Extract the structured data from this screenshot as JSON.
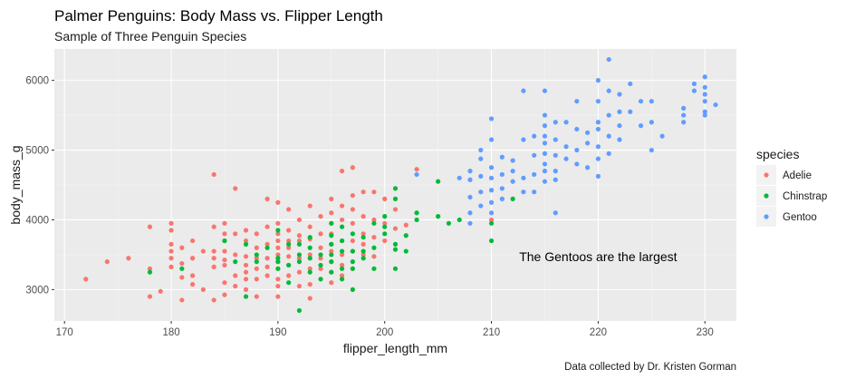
{
  "chart_data": {
    "type": "scatter",
    "title": "Palmer Penguins: Body Mass vs. Flipper Length",
    "subtitle": "Sample of Three Penguin Species",
    "xlabel": "flipper_length_mm",
    "ylabel": "body_mass_g",
    "caption": "Data collected by Dr. Kristen Gorman",
    "annotation": {
      "text": "The Gentoos are the largest",
      "x": 220,
      "y": 3475
    },
    "xlim": [
      169.05,
      232.95
    ],
    "ylim": [
      2550,
      6450
    ],
    "x_ticks": [
      170,
      180,
      190,
      200,
      210,
      220,
      230
    ],
    "y_ticks": [
      3000,
      4000,
      5000,
      6000
    ],
    "grid": true,
    "legend": {
      "title": "species",
      "position": "right"
    },
    "series": [
      {
        "name": "Adelie",
        "color": "#F8766D",
        "points": [
          [
            172,
            3150
          ],
          [
            174,
            3400
          ],
          [
            176,
            3450
          ],
          [
            178,
            3900
          ],
          [
            178,
            2900
          ],
          [
            178,
            3300
          ],
          [
            179,
            2975
          ],
          [
            180,
            3950
          ],
          [
            180,
            3850
          ],
          [
            180,
            3650
          ],
          [
            180,
            3550
          ],
          [
            180,
            3450
          ],
          [
            180,
            3325
          ],
          [
            181,
            3600
          ],
          [
            181,
            3375
          ],
          [
            181,
            3175
          ],
          [
            181,
            2850
          ],
          [
            182,
            3700
          ],
          [
            182,
            3450
          ],
          [
            182,
            3200
          ],
          [
            182,
            3075
          ],
          [
            183,
            3550
          ],
          [
            183,
            3000
          ],
          [
            184,
            4650
          ],
          [
            184,
            3900
          ],
          [
            184,
            3550
          ],
          [
            184,
            3450
          ],
          [
            184,
            3325
          ],
          [
            184,
            2850
          ],
          [
            185,
            3950
          ],
          [
            185,
            3800
          ],
          [
            185,
            3700
          ],
          [
            185,
            3550
          ],
          [
            185,
            3425
          ],
          [
            185,
            3350
          ],
          [
            185,
            3100
          ],
          [
            185,
            2925
          ],
          [
            186,
            4450
          ],
          [
            186,
            3800
          ],
          [
            186,
            3500
          ],
          [
            186,
            3200
          ],
          [
            186,
            3050
          ],
          [
            187,
            3850
          ],
          [
            187,
            3700
          ],
          [
            187,
            3475
          ],
          [
            187,
            3350
          ],
          [
            187,
            3250
          ],
          [
            187,
            3150
          ],
          [
            187,
            3000
          ],
          [
            188,
            3800
          ],
          [
            188,
            3600
          ],
          [
            188,
            3450
          ],
          [
            188,
            3300
          ],
          [
            188,
            3150
          ],
          [
            188,
            2900
          ],
          [
            189,
            4300
          ],
          [
            189,
            3900
          ],
          [
            189,
            3650
          ],
          [
            189,
            3450
          ],
          [
            189,
            3325
          ],
          [
            189,
            3200
          ],
          [
            190,
            4250
          ],
          [
            190,
            3950
          ],
          [
            190,
            3800
          ],
          [
            190,
            3700
          ],
          [
            190,
            3600
          ],
          [
            190,
            3500
          ],
          [
            190,
            3400
          ],
          [
            190,
            3300
          ],
          [
            190,
            3150
          ],
          [
            190,
            3050
          ],
          [
            190,
            2900
          ],
          [
            191,
            4150
          ],
          [
            191,
            3850
          ],
          [
            191,
            3700
          ],
          [
            191,
            3600
          ],
          [
            191,
            3475
          ],
          [
            191,
            3350
          ],
          [
            191,
            3200
          ],
          [
            192,
            4000
          ],
          [
            192,
            3775
          ],
          [
            192,
            3700
          ],
          [
            192,
            3450
          ],
          [
            192,
            3250
          ],
          [
            192,
            3050
          ],
          [
            193,
            4200
          ],
          [
            193,
            3900
          ],
          [
            193,
            3725
          ],
          [
            193,
            3500
          ],
          [
            193,
            3300
          ],
          [
            193,
            3075
          ],
          [
            193,
            2875
          ],
          [
            194,
            4050
          ],
          [
            194,
            3800
          ],
          [
            194,
            3600
          ],
          [
            194,
            3450
          ],
          [
            194,
            3300
          ],
          [
            195,
            4300
          ],
          [
            195,
            4100
          ],
          [
            195,
            3950
          ],
          [
            195,
            3800
          ],
          [
            195,
            3650
          ],
          [
            195,
            3550
          ],
          [
            195,
            3400
          ],
          [
            195,
            3250
          ],
          [
            195,
            3100
          ],
          [
            196,
            4700
          ],
          [
            196,
            4200
          ],
          [
            196,
            4000
          ],
          [
            196,
            3700
          ],
          [
            196,
            3500
          ],
          [
            196,
            3350
          ],
          [
            196,
            3200
          ],
          [
            197,
            4750
          ],
          [
            197,
            4350
          ],
          [
            197,
            4150
          ],
          [
            197,
            3950
          ],
          [
            197,
            3700
          ],
          [
            197,
            3550
          ],
          [
            197,
            3300
          ],
          [
            198,
            4400
          ],
          [
            198,
            4050
          ],
          [
            198,
            3800
          ],
          [
            198,
            3650
          ],
          [
            198,
            3500
          ],
          [
            199,
            4400
          ],
          [
            199,
            4000
          ],
          [
            199,
            3750
          ],
          [
            199,
            3475
          ],
          [
            200,
            4300
          ],
          [
            200,
            3950
          ],
          [
            200,
            3700
          ],
          [
            201,
            4150
          ],
          [
            201,
            3875
          ],
          [
            202,
            3925
          ],
          [
            203,
            4725
          ],
          [
            210,
            4000
          ]
        ]
      },
      {
        "name": "Chinstrap",
        "color": "#00BA38",
        "points": [
          [
            178,
            3250
          ],
          [
            181,
            3300
          ],
          [
            185,
            3700
          ],
          [
            186,
            3400
          ],
          [
            187,
            3650
          ],
          [
            187,
            2900
          ],
          [
            188,
            3500
          ],
          [
            188,
            3400
          ],
          [
            189,
            3600
          ],
          [
            190,
            3850
          ],
          [
            190,
            3450
          ],
          [
            190,
            3400
          ],
          [
            190,
            3300
          ],
          [
            191,
            3650
          ],
          [
            191,
            3350
          ],
          [
            191,
            3100
          ],
          [
            192,
            3650
          ],
          [
            192,
            3500
          ],
          [
            192,
            3400
          ],
          [
            192,
            2700
          ],
          [
            193,
            3750
          ],
          [
            193,
            3600
          ],
          [
            193,
            3450
          ],
          [
            193,
            3250
          ],
          [
            194,
            3500
          ],
          [
            194,
            3350
          ],
          [
            194,
            3150
          ],
          [
            195,
            3950
          ],
          [
            195,
            3775
          ],
          [
            195,
            3650
          ],
          [
            195,
            3500
          ],
          [
            195,
            3400
          ],
          [
            195,
            3250
          ],
          [
            196,
            3900
          ],
          [
            196,
            3700
          ],
          [
            196,
            3550
          ],
          [
            196,
            3300
          ],
          [
            196,
            3150
          ],
          [
            197,
            3800
          ],
          [
            197,
            3550
          ],
          [
            197,
            3400
          ],
          [
            197,
            3300
          ],
          [
            197,
            3000
          ],
          [
            198,
            3750
          ],
          [
            198,
            3550
          ],
          [
            198,
            3450
          ],
          [
            199,
            3950
          ],
          [
            199,
            3600
          ],
          [
            199,
            3300
          ],
          [
            200,
            4050
          ],
          [
            200,
            3900
          ],
          [
            200,
            3800
          ],
          [
            201,
            4450
          ],
          [
            201,
            4300
          ],
          [
            201,
            3650
          ],
          [
            201,
            3575
          ],
          [
            201,
            3300
          ],
          [
            202,
            3775
          ],
          [
            202,
            3550
          ],
          [
            203,
            4100
          ],
          [
            203,
            4000
          ],
          [
            205,
            4550
          ],
          [
            205,
            4050
          ],
          [
            206,
            3950
          ],
          [
            207,
            4000
          ],
          [
            210,
            3950
          ],
          [
            210,
            3700
          ],
          [
            212,
            4300
          ]
        ]
      },
      {
        "name": "Gentoo",
        "color": "#619CFF",
        "points": [
          [
            203,
            4650
          ],
          [
            207,
            4600
          ],
          [
            208,
            4700
          ],
          [
            208,
            4575
          ],
          [
            208,
            4325
          ],
          [
            208,
            4100
          ],
          [
            208,
            3950
          ],
          [
            209,
            5000
          ],
          [
            209,
            4875
          ],
          [
            209,
            4625
          ],
          [
            209,
            4400
          ],
          [
            209,
            4200
          ],
          [
            210,
            5450
          ],
          [
            210,
            5150
          ],
          [
            210,
            4750
          ],
          [
            210,
            4600
          ],
          [
            210,
            4425
          ],
          [
            210,
            4250
          ],
          [
            210,
            4100
          ],
          [
            211,
            4900
          ],
          [
            211,
            4650
          ],
          [
            211,
            4450
          ],
          [
            211,
            4300
          ],
          [
            212,
            4850
          ],
          [
            212,
            4700
          ],
          [
            212,
            4550
          ],
          [
            213,
            5850
          ],
          [
            213,
            5150
          ],
          [
            213,
            4600
          ],
          [
            213,
            4400
          ],
          [
            214,
            5200
          ],
          [
            214,
            4925
          ],
          [
            214,
            4650
          ],
          [
            214,
            4400
          ],
          [
            215,
            5850
          ],
          [
            215,
            5500
          ],
          [
            215,
            5350
          ],
          [
            215,
            5200
          ],
          [
            215,
            5100
          ],
          [
            215,
            4950
          ],
          [
            215,
            4800
          ],
          [
            215,
            4700
          ],
          [
            215,
            4550
          ],
          [
            216,
            5400
          ],
          [
            216,
            5150
          ],
          [
            216,
            4925
          ],
          [
            216,
            4700
          ],
          [
            216,
            4575
          ],
          [
            216,
            4100
          ],
          [
            217,
            5400
          ],
          [
            217,
            5050
          ],
          [
            217,
            4875
          ],
          [
            218,
            5700
          ],
          [
            218,
            5300
          ],
          [
            218,
            5000
          ],
          [
            218,
            4800
          ],
          [
            219,
            5250
          ],
          [
            219,
            5100
          ],
          [
            219,
            4750
          ],
          [
            220,
            6000
          ],
          [
            220,
            5700
          ],
          [
            220,
            5400
          ],
          [
            220,
            5300
          ],
          [
            220,
            5050
          ],
          [
            220,
            4875
          ],
          [
            220,
            4625
          ],
          [
            221,
            6300
          ],
          [
            221,
            5850
          ],
          [
            221,
            5500
          ],
          [
            221,
            5200
          ],
          [
            221,
            4950
          ],
          [
            222,
            5800
          ],
          [
            222,
            5550
          ],
          [
            222,
            5350
          ],
          [
            222,
            5150
          ],
          [
            223,
            5950
          ],
          [
            223,
            5550
          ],
          [
            224,
            5700
          ],
          [
            224,
            5350
          ],
          [
            225,
            5700
          ],
          [
            225,
            5400
          ],
          [
            225,
            5000
          ],
          [
            226,
            5200
          ],
          [
            228,
            5600
          ],
          [
            228,
            5500
          ],
          [
            228,
            5400
          ],
          [
            229,
            5950
          ],
          [
            229,
            5850
          ],
          [
            230,
            6050
          ],
          [
            230,
            5900
          ],
          [
            230,
            5800
          ],
          [
            230,
            5700
          ],
          [
            230,
            5550
          ],
          [
            230,
            5500
          ],
          [
            231,
            5650
          ]
        ]
      }
    ]
  }
}
